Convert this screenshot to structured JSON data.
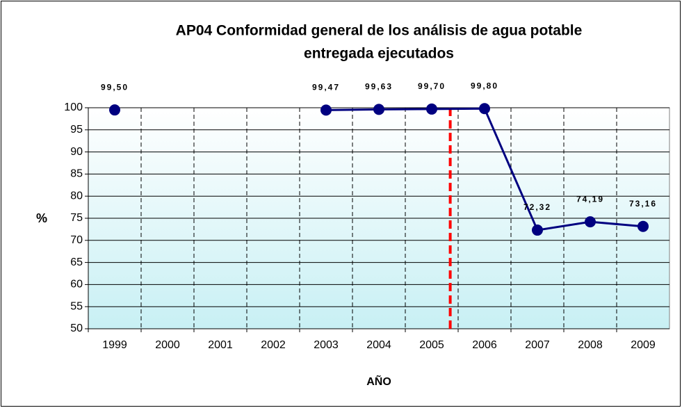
{
  "chart_data": {
    "type": "line",
    "title": [
      "AP04 Conformidad general de los análisis de agua potable",
      "entregada ejecutados"
    ],
    "x_label": "AÑO",
    "y_label": "%",
    "categories": [
      "1999",
      "2000",
      "2001",
      "2002",
      "2003",
      "2004",
      "2005",
      "2006",
      "2007",
      "2008",
      "2009"
    ],
    "values": [
      99.5,
      null,
      null,
      null,
      99.47,
      99.63,
      99.7,
      99.8,
      72.32,
      74.19,
      73.16
    ],
    "value_labels": [
      "99,50",
      null,
      null,
      null,
      "99,47",
      "99,63",
      "99,70",
      "99,80",
      "72,32",
      "74,19",
      "73,16"
    ],
    "color": "#000080",
    "ylim": [
      50,
      100
    ],
    "yticks": [
      50,
      55,
      60,
      65,
      70,
      75,
      80,
      85,
      90,
      95,
      100
    ],
    "grid": true
  }
}
